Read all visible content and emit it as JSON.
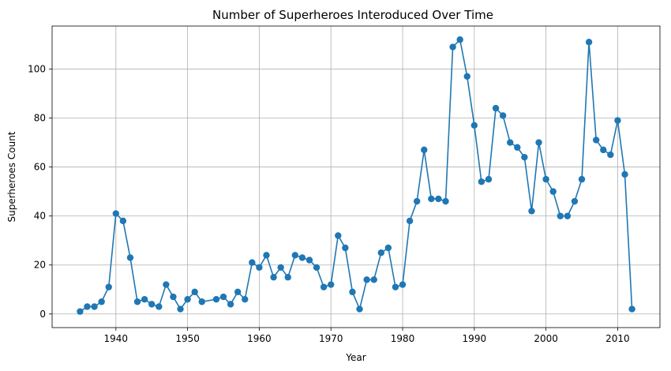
{
  "chart_data": {
    "type": "line",
    "title": "Number of Superheroes Interoduced Over Time",
    "xlabel": "Year",
    "ylabel": "Superheroes Count",
    "xlim": [
      1931.1,
      2015.9
    ],
    "ylim": [
      -5.55,
      117.55
    ],
    "xticks": [
      1940,
      1950,
      1960,
      1970,
      1980,
      1990,
      2000,
      2010
    ],
    "yticks": [
      0,
      20,
      40,
      60,
      80,
      100
    ],
    "grid": true,
    "color": "#1f77b4",
    "marker": "circle",
    "series": [
      {
        "name": "",
        "x": [
          1935,
          1936,
          1937,
          1938,
          1939,
          1940,
          1941,
          1942,
          1943,
          1944,
          1945,
          1946,
          1947,
          1948,
          1949,
          1950,
          1951,
          1952,
          1954,
          1955,
          1956,
          1957,
          1958,
          1959,
          1960,
          1961,
          1962,
          1963,
          1964,
          1965,
          1966,
          1967,
          1968,
          1969,
          1970,
          1971,
          1972,
          1973,
          1974,
          1975,
          1976,
          1977,
          1978,
          1979,
          1980,
          1981,
          1982,
          1983,
          1984,
          1985,
          1986,
          1987,
          1988,
          1989,
          1990,
          1991,
          1992,
          1993,
          1994,
          1995,
          1996,
          1997,
          1998,
          1999,
          2000,
          2001,
          2002,
          2003,
          2004,
          2005,
          2006,
          2007,
          2008,
          2009,
          2010,
          2011,
          2012
        ],
        "y": [
          1,
          3,
          3,
          5,
          11,
          41,
          38,
          23,
          5,
          6,
          4,
          3,
          12,
          7,
          2,
          6,
          9,
          5,
          6,
          7,
          4,
          9,
          6,
          21,
          19,
          24,
          15,
          19,
          15,
          24,
          23,
          22,
          19,
          11,
          12,
          32,
          27,
          9,
          2,
          14,
          14,
          25,
          27,
          11,
          12,
          38,
          46,
          67,
          47,
          47,
          46,
          109,
          112,
          97,
          77,
          54,
          55,
          84,
          81,
          70,
          68,
          64,
          42,
          70,
          55,
          50,
          40,
          40,
          46,
          55,
          111,
          71,
          67,
          65,
          79,
          57,
          2
        ]
      }
    ]
  }
}
